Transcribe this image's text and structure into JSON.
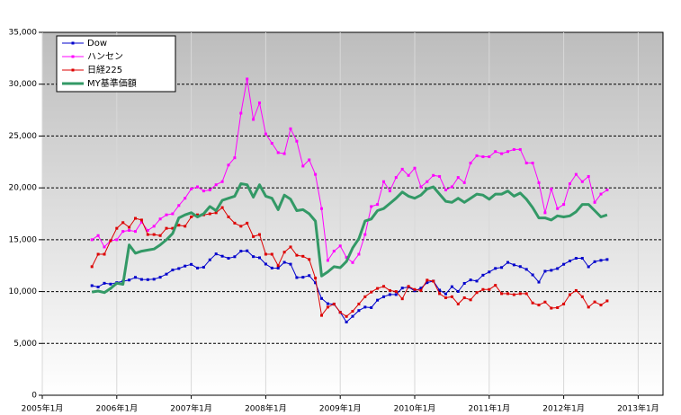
{
  "chart_data": {
    "type": "line",
    "x": [
      "2005-09",
      "2005-10",
      "2005-11",
      "2005-12",
      "2006-01",
      "2006-02",
      "2006-03",
      "2006-04",
      "2006-05",
      "2006-06",
      "2006-07",
      "2006-08",
      "2006-09",
      "2006-10",
      "2006-11",
      "2006-12",
      "2007-01",
      "2007-02",
      "2007-03",
      "2007-04",
      "2007-05",
      "2007-06",
      "2007-07",
      "2007-08",
      "2007-09",
      "2007-10",
      "2007-11",
      "2007-12",
      "2008-01",
      "2008-02",
      "2008-03",
      "2008-04",
      "2008-05",
      "2008-06",
      "2008-07",
      "2008-08",
      "2008-09",
      "2008-10",
      "2008-11",
      "2008-12",
      "2009-01",
      "2009-02",
      "2009-03",
      "2009-04",
      "2009-05",
      "2009-06",
      "2009-07",
      "2009-08",
      "2009-09",
      "2009-10",
      "2009-11",
      "2009-12",
      "2010-01",
      "2010-02",
      "2010-03",
      "2010-04",
      "2010-05",
      "2010-06",
      "2010-07",
      "2010-08",
      "2010-09",
      "2010-10",
      "2010-11",
      "2010-12",
      "2011-01",
      "2011-02",
      "2011-03",
      "2011-04",
      "2011-05",
      "2011-06",
      "2011-07",
      "2011-08",
      "2011-09",
      "2011-10",
      "2011-11",
      "2011-12",
      "2012-01",
      "2012-02",
      "2012-03",
      "2012-04",
      "2012-05",
      "2012-06",
      "2012-07",
      "2012-08"
    ],
    "series": [
      {
        "name": "Dow",
        "color": "#0000cc",
        "marker": "square",
        "line_width": 1,
        "values": [
          10570,
          10440,
          10800,
          10720,
          10860,
          10990,
          11110,
          11370,
          11170,
          11150,
          11190,
          11380,
          11680,
          12080,
          12220,
          12460,
          12620,
          12270,
          12350,
          13060,
          13630,
          13410,
          13210,
          13360,
          13900,
          13930,
          13370,
          13260,
          12650,
          12270,
          12260,
          12820,
          12640,
          11350,
          11380,
          11540,
          10850,
          9330,
          8830,
          8780,
          8000,
          7060,
          7610,
          8170,
          8500,
          8450,
          9170,
          9500,
          9710,
          9710,
          10340,
          10430,
          10070,
          10330,
          10860,
          11010,
          10140,
          9770,
          10470,
          10010,
          10790,
          11120,
          11010,
          11580,
          11890,
          12230,
          12320,
          12810,
          12570,
          12410,
          12140,
          11610,
          10910,
          11960,
          12050,
          12220,
          12630,
          12950,
          13210,
          13210,
          12390,
          12880,
          13010,
          13090
        ]
      },
      {
        "name": "ハンセン",
        "color": "#ff00ff",
        "marker": "square",
        "line_width": 1,
        "values": [
          15000,
          15400,
          14300,
          14900,
          15000,
          15800,
          15900,
          15800,
          16700,
          15900,
          16300,
          17000,
          17400,
          17500,
          18300,
          19000,
          19900,
          20100,
          19700,
          19800,
          20300,
          20600,
          22200,
          22900,
          27200,
          30500,
          26600,
          28200,
          25200,
          24300,
          23400,
          23300,
          25700,
          24500,
          22100,
          22700,
          21300,
          18000,
          13000,
          13900,
          14400,
          13300,
          12800,
          13600,
          15500,
          18200,
          18400,
          20600,
          19700,
          21000,
          21800,
          21200,
          21900,
          20100,
          20600,
          21200,
          21100,
          19800,
          20100,
          21000,
          20500,
          22400,
          23100,
          23000,
          23000,
          23500,
          23300,
          23500,
          23700,
          23700,
          22400,
          22400,
          20500,
          17600,
          19900,
          18000,
          18400,
          20400,
          21300,
          20600,
          21100,
          18600,
          19400,
          19800
        ]
      },
      {
        "name": "日経225",
        "color": "#dd0000",
        "marker": "square",
        "line_width": 1,
        "values": [
          12400,
          13600,
          13600,
          14900,
          16100,
          16650,
          16200,
          17060,
          16900,
          15500,
          15500,
          15400,
          16100,
          16100,
          16400,
          16300,
          17200,
          17400,
          17400,
          17500,
          17600,
          18100,
          17200,
          16600,
          16300,
          16600,
          15300,
          15500,
          13600,
          13600,
          12500,
          13800,
          14300,
          13500,
          13400,
          13100,
          11300,
          7700,
          8500,
          8800,
          8000,
          7600,
          8100,
          8800,
          9500,
          9950,
          10300,
          10500,
          10100,
          10000,
          9300,
          10500,
          10200,
          10100,
          11100,
          11000,
          9800,
          9400,
          9500,
          8800,
          9400,
          9200,
          9900,
          10200,
          10200,
          10600,
          9800,
          9800,
          9700,
          9800,
          9800,
          8900,
          8700,
          8990,
          8400,
          8450,
          8800,
          9700,
          10100,
          9500,
          8500,
          9000,
          8700,
          9100
        ]
      },
      {
        "name": "MY基準価額",
        "color": "#339966",
        "marker": "none",
        "line_width": 3,
        "values": [
          9950,
          10050,
          9900,
          10300,
          10800,
          10700,
          14500,
          13700,
          13900,
          14000,
          14100,
          14500,
          15000,
          15600,
          17100,
          17400,
          17600,
          17200,
          17500,
          18200,
          17800,
          18800,
          19000,
          19200,
          20400,
          20300,
          19100,
          20300,
          19200,
          19000,
          17900,
          19300,
          18900,
          17800,
          17900,
          17500,
          16800,
          11500,
          11900,
          12400,
          12300,
          12900,
          14200,
          15100,
          16800,
          17000,
          17800,
          18000,
          18500,
          19000,
          19600,
          19200,
          19000,
          19300,
          19900,
          20100,
          19400,
          18700,
          18600,
          19000,
          18600,
          19000,
          19400,
          19300,
          18900,
          19400,
          19400,
          19700,
          19200,
          19500,
          18900,
          18100,
          17100,
          17100,
          16900,
          17300,
          17200,
          17300,
          17700,
          18400,
          18400,
          17800,
          17200,
          17400
        ]
      }
    ],
    "xlim": [
      "2005-01",
      "2013-05"
    ],
    "xticks": [
      {
        "value": "2005-01",
        "label": "2005年1月"
      },
      {
        "value": "2006-01",
        "label": "2006年1月"
      },
      {
        "value": "2007-01",
        "label": "2007年1月"
      },
      {
        "value": "2008-01",
        "label": "2008年1月"
      },
      {
        "value": "2009-01",
        "label": "2009年1月"
      },
      {
        "value": "2010-01",
        "label": "2010年1月"
      },
      {
        "value": "2011-01",
        "label": "2011年1月"
      },
      {
        "value": "2012-01",
        "label": "2012年1月"
      },
      {
        "value": "2013-01",
        "label": "2013年1月"
      }
    ],
    "ylim": [
      0,
      35000
    ],
    "yticks": [
      0,
      {
        "value": 5000,
        "label": "5,000"
      },
      {
        "value": 10000,
        "label": "10,000"
      },
      {
        "value": 15000,
        "label": "15,000"
      },
      {
        "value": 20000,
        "label": "20,000"
      },
      {
        "value": 25000,
        "label": "25,000"
      },
      {
        "value": 30000,
        "label": "30,000"
      },
      {
        "value": 35000,
        "label": "35,000"
      }
    ],
    "grid": true,
    "legend": "top-left"
  }
}
